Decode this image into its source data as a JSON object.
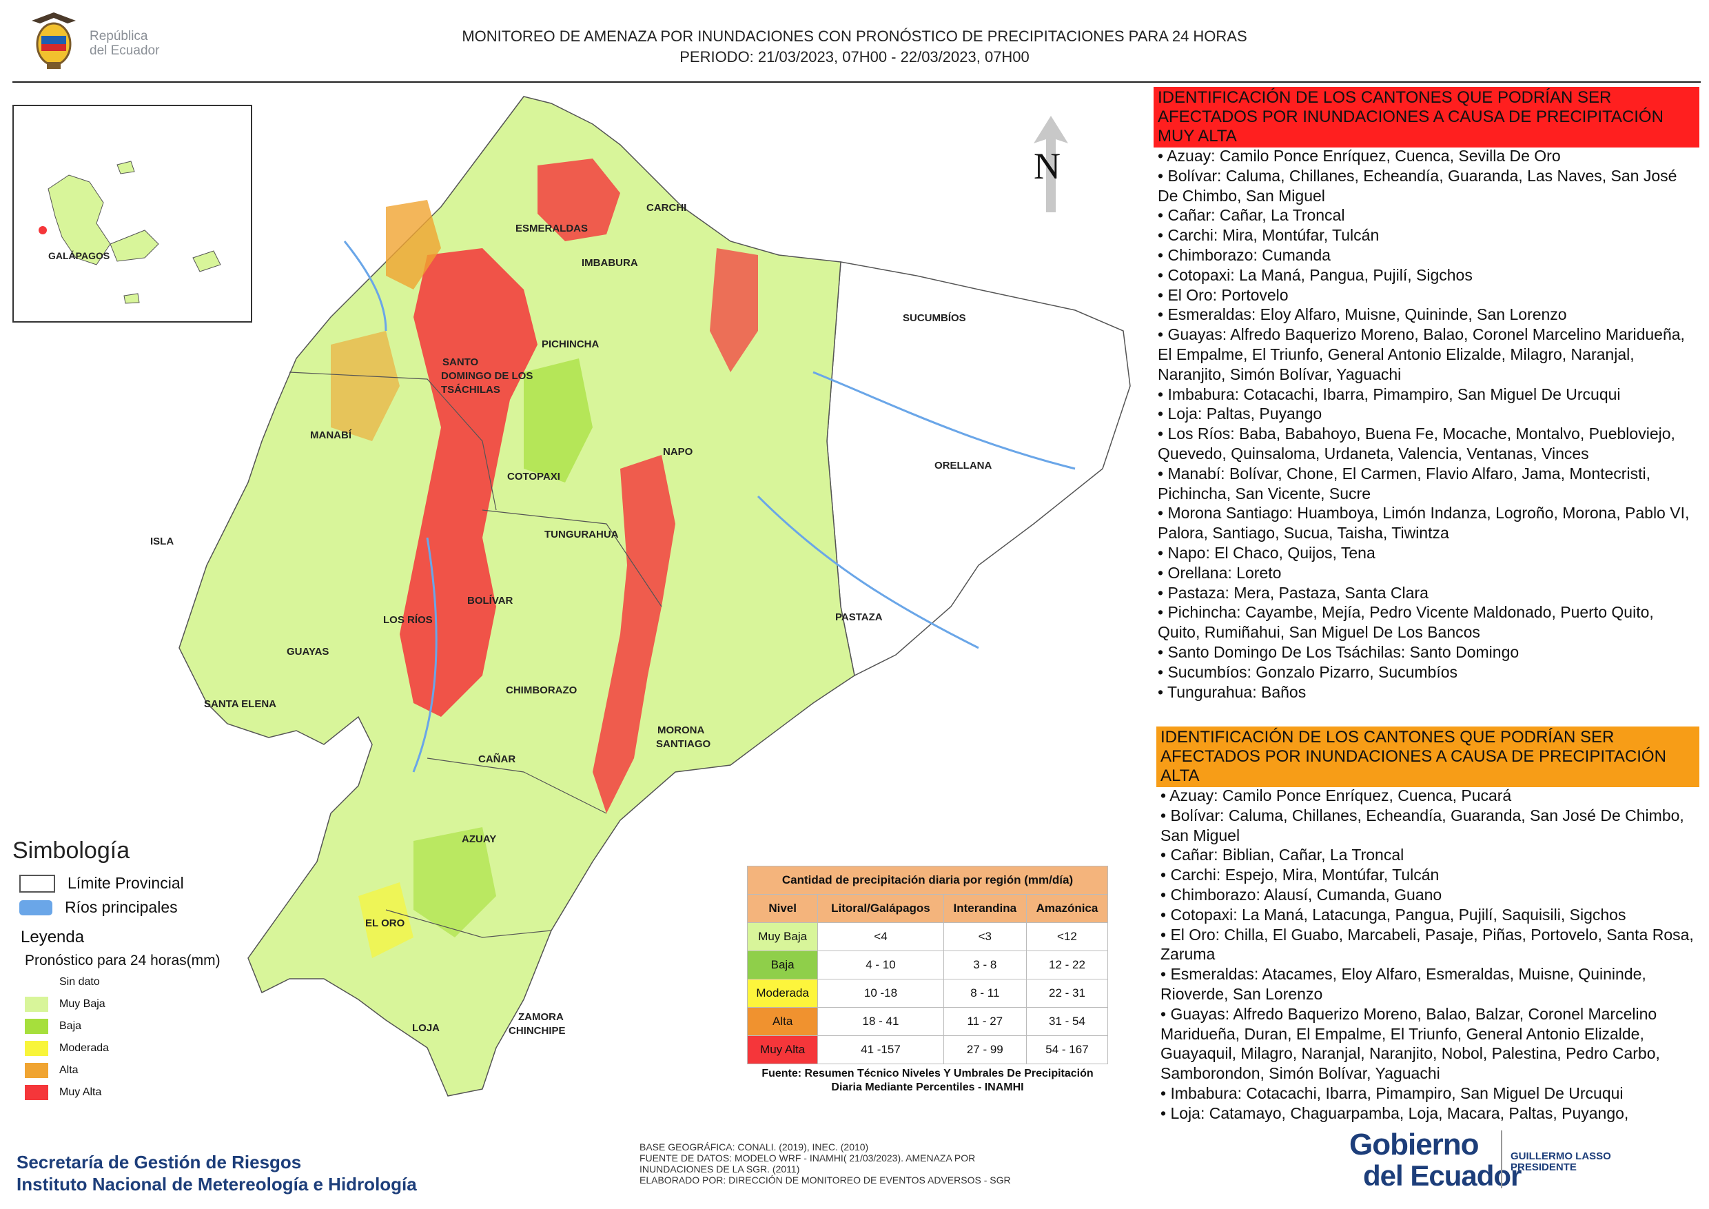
{
  "header": {
    "logo_text_line1": "República",
    "logo_text_line2": "del Ecuador",
    "title_line1": "MONITOREO DE AMENAZA POR INUNDACIONES  CON PRONÓSTICO DE  PRECIPITACIONES PARA 24 HORAS",
    "title_line2": "PERIODO: 21/03/2023, 07H00 - 22/03/2023, 07H00"
  },
  "map": {
    "north_label": "N",
    "region_labels": [
      "CARCHI",
      "ESMERALDAS",
      "IMBABURA",
      "SUCUMBÍOS",
      "PICHINCHA",
      "SANTO",
      "DOMINGO DE LOS",
      "TSÁCHILAS",
      "MANABÍ",
      "ORELLANA",
      "NAPO",
      "COTOPAXI",
      "ISLA",
      "TUNGURAHUA",
      "BOLÍVAR",
      "LOS RÍOS",
      "PASTAZA",
      "GUAYAS",
      "CHIMBORAZO",
      "SANTA ELENA",
      "MORONA",
      "SANTIAGO",
      "CAÑAR",
      "AZUAY",
      "EL ORO",
      "ZAMORA",
      "CHINCHIPE",
      "LOJA"
    ],
    "inset_label": "GALÁPAGOS"
  },
  "legend": {
    "title": "Simbología",
    "symbols": [
      {
        "label": "Límite Provincial"
      },
      {
        "label": "Ríos principales"
      }
    ],
    "legend_heading": "Leyenda",
    "forecast_heading": "Pronóstico para 24 horas(mm)",
    "classes": [
      {
        "label": "Sin dato",
        "color": "#ffffff"
      },
      {
        "label": " Muy Baja",
        "color": "#d8f59a"
      },
      {
        "label": "Baja",
        "color": "#a6df3c"
      },
      {
        "label": "Moderada",
        "color": "#f8f53a"
      },
      {
        "label": "Alta",
        "color": "#f0a431"
      },
      {
        "label": "Muy Alta",
        "color": "#f5363a"
      }
    ]
  },
  "precip_table": {
    "title": "Cantidad de precipitación diaria por región (mm/día)",
    "headers": [
      "Nivel",
      "Litoral/Galápagos",
      "Interandina",
      "Amazónica"
    ],
    "rows": [
      {
        "level": "Muy Baja",
        "color": "#d8f59a",
        "litoral": "<4",
        "interandina": "<3",
        "amazonica": "<12"
      },
      {
        "level": "Baja",
        "color": "#8fcf4a",
        "litoral": "4 - 10",
        "interandina": "3 - 8",
        "amazonica": "12 - 22"
      },
      {
        "level": "Moderada",
        "color": "#fdf53c",
        "litoral": "10 -18",
        "interandina": "8 - 11",
        "amazonica": "22 - 31"
      },
      {
        "level": "Alta",
        "color": "#f0922f",
        "litoral": "18 - 41",
        "interandina": "11 - 27",
        "amazonica": "31 - 54"
      },
      {
        "level": "Muy Alta",
        "color": "#f5363a",
        "litoral": "41 -157",
        "interandina": "27 - 99",
        "amazonica": "54 - 167"
      }
    ],
    "source": "Fuente: Resumen Técnico Niveles Y Umbrales De Precipitación Diaria Mediante Percentiles - INAMHI"
  },
  "panel_muy_alta": {
    "heading": "IDENTIFICACIÓN DE LOS CANTONES QUE PODRÍAN SER AFECTADOS POR INUNDACIONES  A CAUSA DE PRECIPITACIÓN MUY ALTA",
    "items": [
      "Azuay: Camilo Ponce Enríquez, Cuenca, Sevilla De Oro",
      "Bolívar: Caluma, Chillanes, Echeandía, Guaranda, Las Naves, San José De Chimbo, San Miguel",
      "Cañar: Cañar, La Troncal",
      "Carchi: Mira, Montúfar, Tulcán",
      "Chimborazo: Cumanda",
      "Cotopaxi: La Maná, Pangua, Pujilí, Sigchos",
      "El Oro: Portovelo",
      "Esmeraldas: Eloy Alfaro, Muisne, Quininde, San Lorenzo",
      "Guayas: Alfredo Baquerizo Moreno, Balao, Coronel Marcelino Maridueña, El Empalme, El Triunfo, General Antonio Elizalde, Milagro, Naranjal, Naranjito, Simón Bolívar, Yaguachi",
      "Imbabura: Cotacachi, Ibarra, Pimampiro, San Miguel De Urcuqui",
      "Loja: Paltas, Puyango",
      "Los Ríos: Baba, Babahoyo, Buena Fe, Mocache, Montalvo, Puebloviejo, Quevedo, Quinsaloma, Urdaneta, Valencia, Ventanas, Vinces",
      "Manabí: Bolívar, Chone, El Carmen, Flavio Alfaro, Jama, Montecristi, Pichincha, San Vicente, Sucre",
      "Morona Santiago: Huamboya, Limón Indanza, Logroño, Morona, Pablo VI, Palora, Santiago, Sucua, Taisha, Tiwintza",
      "Napo: El Chaco, Quijos, Tena",
      "Orellana: Loreto",
      "Pastaza: Mera, Pastaza, Santa Clara",
      "Pichincha: Cayambe, Mejía, Pedro Vicente Maldonado, Puerto Quito, Quito, Rumiñahui, San Miguel De Los Bancos",
      "Santo Domingo De Los Tsáchilas: Santo Domingo",
      "Sucumbíos: Gonzalo Pizarro, Sucumbíos",
      "Tungurahua: Baños"
    ]
  },
  "panel_alta": {
    "heading": "IDENTIFICACIÓN DE LOS CANTONES QUE  PODRÍAN SER AFECTADOS POR INUNDACIONES  A CAUSA DE PRECIPITACIÓN ALTA",
    "items": [
      "Azuay: Camilo Ponce Enríquez, Cuenca, Pucará",
      "Bolívar: Caluma, Chillanes, Echeandía, Guaranda, San José De Chimbo, San Miguel",
      "Cañar: Biblian, Cañar, La Troncal",
      "Carchi: Espejo, Mira, Montúfar, Tulcán",
      "Chimborazo: Alausí, Cumanda, Guano",
      "Cotopaxi: La Maná, Latacunga, Pangua, Pujilí, Saquisili, Sigchos",
      "El Oro: Chilla, El Guabo, Marcabeli, Pasaje, Piñas, Portovelo, Santa Rosa, Zaruma",
      "Esmeraldas: Atacames, Eloy Alfaro, Esmeraldas, Muisne, Quininde, Rioverde, San Lorenzo",
      "Guayas: Alfredo Baquerizo Moreno, Balao, Balzar, Coronel Marcelino Maridueña, Duran, El Empalme, El Triunfo, General Antonio Elizalde, Guayaquil, Milagro, Naranjal, Naranjito, Nobol, Palestina, Pedro Carbo, Samborondon, Simón Bolívar, Yaguachi",
      "Imbabura: Cotacachi, Ibarra, Pimampiro, San Miguel De Urcuqui",
      "Loja: Catamayo, Chaguarpamba, Loja, Macara, Paltas, Puyango,"
    ]
  },
  "footer": {
    "org_line1": "Secretaría de Gestión de Riesgos",
    "org_line2": "Instituto Nacional de Metereología e Hidrología",
    "meta_lines": [
      "BASE GEOGRÁFICA: CONALI. (2019), INEC. (2010)",
      "FUENTE DE DATOS: MODELO WRF - INAMHI( 21/03/2023).  AMENAZA POR",
      "INUNDACIONES DE LA SGR. (2011)",
      "ELABORADO POR: DIRECCIÓN DE MONITOREO DE EVENTOS ADVERSOS - SGR"
    ],
    "gov_line1": "Gobierno",
    "gov_line2": "del Ecuador",
    "president_line1": "GUILLERMO LASSO",
    "president_line2": "PRESIDENTE"
  }
}
